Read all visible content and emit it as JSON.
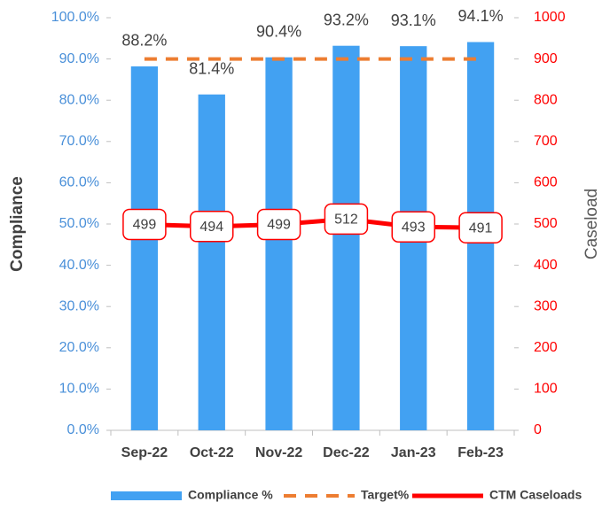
{
  "chart_data": {
    "type": "bar",
    "categories": [
      "Sep-22",
      "Oct-22",
      "Nov-22",
      "Dec-22",
      "Jan-23",
      "Feb-23"
    ],
    "series": [
      {
        "name": "Compliance %",
        "color": "#42a1f2",
        "type": "bar",
        "values": [
          88.2,
          81.4,
          90.4,
          93.2,
          93.1,
          94.1
        ],
        "value_labels": [
          "88.2%",
          "81.4%",
          "90.4%",
          "93.2%",
          "93.1%",
          "94.1%"
        ]
      },
      {
        "name": "Target%",
        "color": "#ed7d31",
        "type": "line",
        "dashed": true,
        "values": [
          90,
          90,
          90,
          90,
          90,
          90
        ]
      },
      {
        "name": "CTM Caseloads",
        "color": "#ff0000",
        "type": "line",
        "axis": "y2",
        "values": [
          499,
          494,
          499,
          512,
          493,
          491
        ]
      }
    ],
    "ylabel": "Compliance",
    "y2label": "Caseload",
    "ylim": [
      0,
      100
    ],
    "yticks": [
      {
        "value": 0,
        "label": "0.0%"
      },
      {
        "value": 10,
        "label": "10.0%"
      },
      {
        "value": 20,
        "label": "20.0%"
      },
      {
        "value": 30,
        "label": "30.0%"
      },
      {
        "value": 40,
        "label": "40.0%"
      },
      {
        "value": 50,
        "label": "50.0%"
      },
      {
        "value": 60,
        "label": "60.0%"
      },
      {
        "value": 70,
        "label": "70.0%"
      },
      {
        "value": 80,
        "label": "80.0%"
      },
      {
        "value": 90,
        "label": "90.0%"
      },
      {
        "value": 100,
        "label": "100.0%"
      }
    ],
    "y2lim": [
      0,
      1000
    ],
    "y2ticks": [
      0,
      100,
      200,
      300,
      400,
      500,
      600,
      700,
      800,
      900,
      1000
    ],
    "ytick_color": "#4a90d9",
    "y2tick_color": "#ff0000",
    "legend": "bottom",
    "grid": false
  }
}
